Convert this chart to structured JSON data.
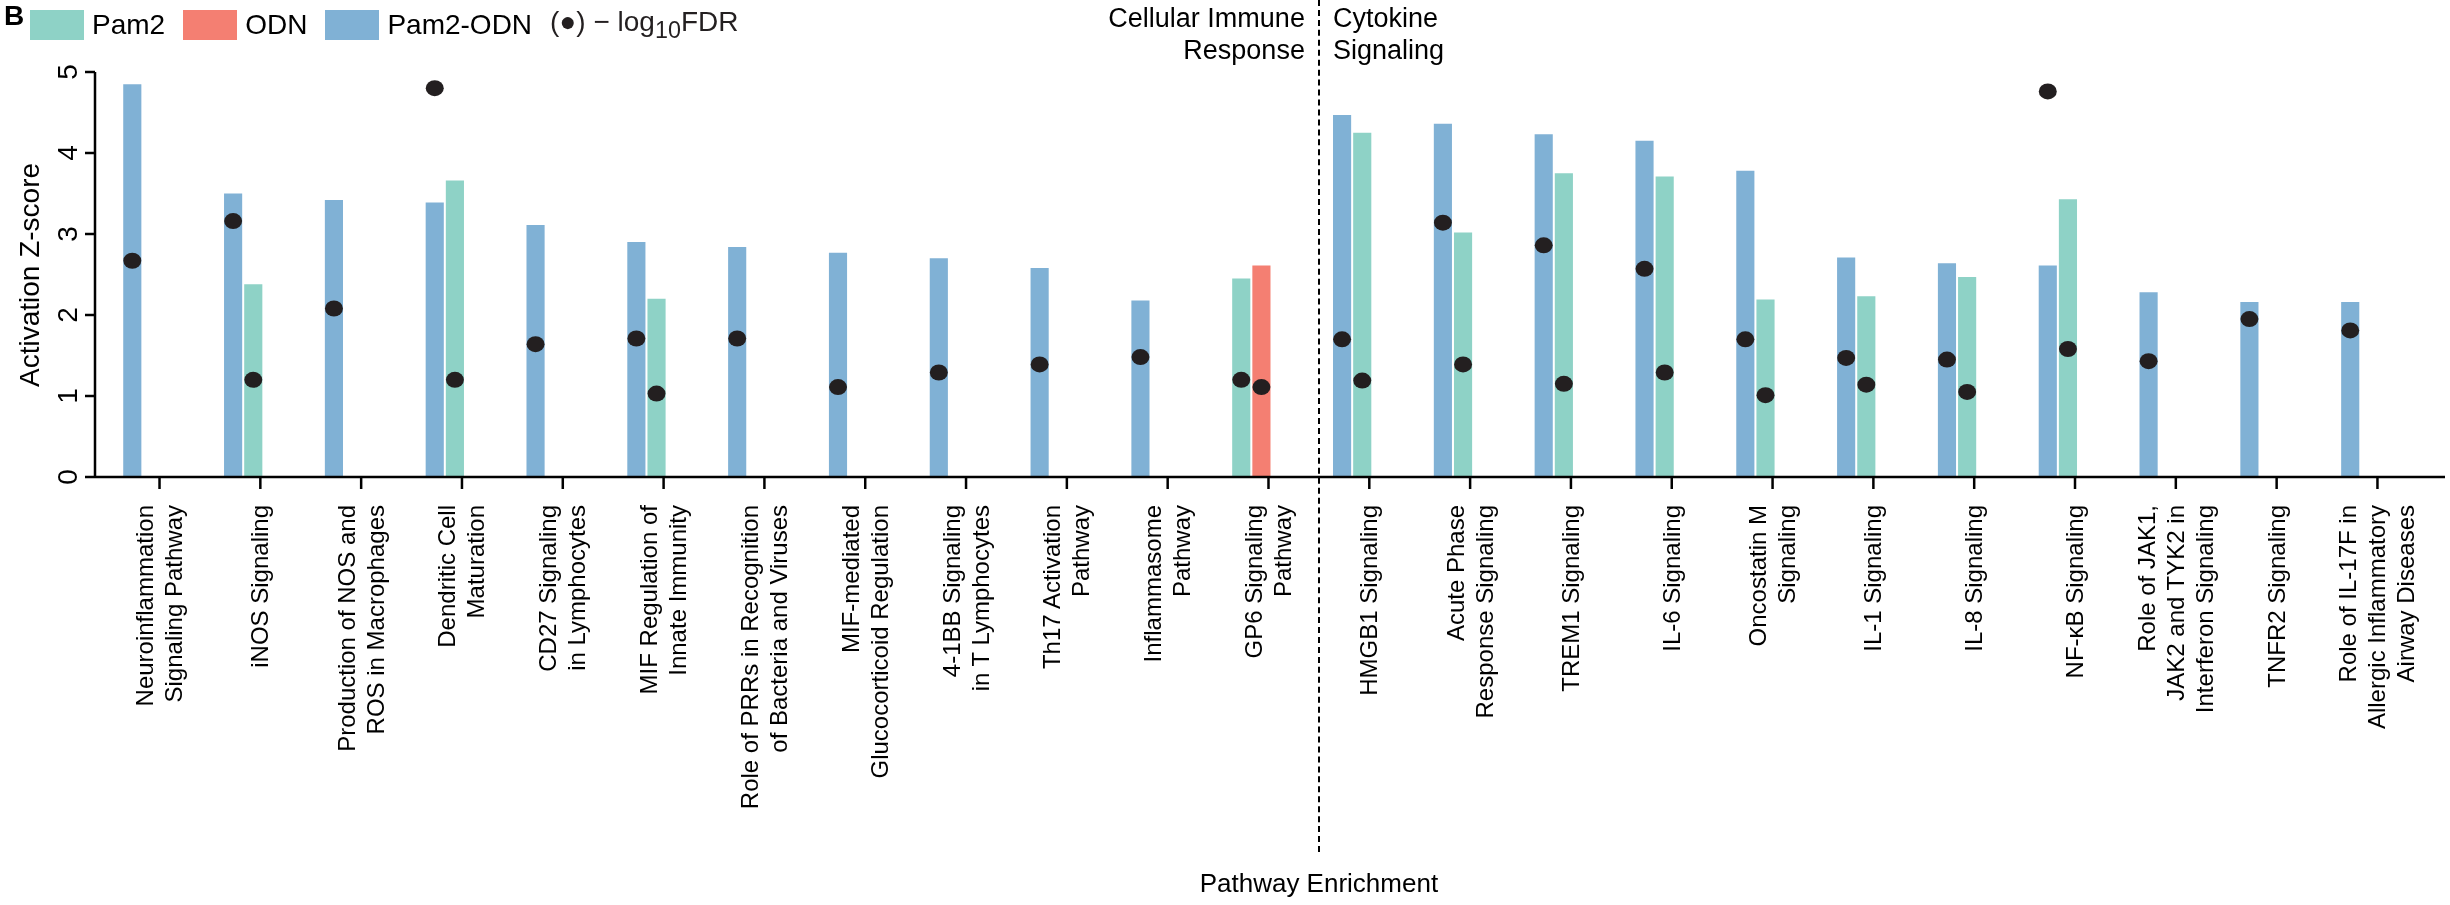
{
  "chart_data": {
    "type": "bar",
    "categories": [
      "Neuroinflammation\nSignaling Pathway",
      "iNOS Signaling",
      "Production of NOS and\nROS in Macrophages",
      "Dendritic Cell\nMaturation",
      "CD27 Signaling\nin Lymphocytes",
      "MIF Regulation of\nInnate Immunity",
      "Role of PRRs in Recognition\nof Bacteria and Viruses",
      "MIF-mediated\nGlucocorticoid Regulation",
      "4-1BB Signaling\nin T Lymphocytes",
      "Th17 Activation\nPathway",
      "Inflammasome\nPathway",
      "GP6 Signaling\nPathway",
      "HMGB1 Signaling",
      "Acute Phase\nResponse Signaling",
      "TREM1 Signaling",
      "IL-6 Signaling",
      "Oncostatin M\nSignaling",
      "IL-1 Signaling",
      "IL-8 Signaling",
      "NF-κB Signaling",
      "Role of JAK1,\nJAK2 and TYK2 in\nInterferon Signaling",
      "TNFR2 Signaling",
      "Role of IL-17F in\nAllergic Inflammatory\nAirway Diseases"
    ],
    "series": [
      {
        "name": "Pam2",
        "color": "#8ed2c6",
        "values": [
          null,
          2.38,
          null,
          3.66,
          null,
          2.2,
          null,
          null,
          null,
          null,
          null,
          2.45,
          4.25,
          3.02,
          3.75,
          3.71,
          2.19,
          2.23,
          2.47,
          3.43,
          null,
          null,
          null
        ]
      },
      {
        "name": "ODN",
        "color": "#f47f72",
        "values": [
          null,
          null,
          null,
          null,
          null,
          null,
          null,
          null,
          null,
          null,
          null,
          2.61,
          null,
          null,
          null,
          null,
          null,
          null,
          null,
          null,
          null,
          null,
          null
        ]
      },
      {
        "name": "Pam2-ODN",
        "color": "#80b1d5",
        "values": [
          4.85,
          3.5,
          3.42,
          3.39,
          3.11,
          2.9,
          2.84,
          2.77,
          2.7,
          2.58,
          2.18,
          null,
          4.47,
          4.36,
          4.23,
          4.15,
          3.78,
          2.71,
          2.64,
          2.61,
          2.28,
          2.16,
          2.16
        ]
      },
      {
        "name": "(●) − log$_{10}$FDR",
        "type": "scatter",
        "color": "#231f20",
        "x": [
          "Neuroinflammation\nSignaling Pathway",
          "iNOS Signaling",
          "iNOS Signaling",
          "Production of NOS and\nROS in Macrophages",
          "Dendritic Cell\nMaturation",
          "Dendritic Cell\nMaturation",
          "CD27 Signaling\nin Lymphocytes",
          "MIF Regulation of\nInnate Immunity",
          "MIF Regulation of\nInnate Immunity",
          "Role of PRRs in Recognition\nof Bacteria and Viruses",
          "MIF-mediated\nGlucocorticoid Regulation",
          "4-1BB Signaling\nin T Lymphocytes",
          "Th17 Activation\nPathway",
          "Inflammasome\nPathway",
          "GP6 Signaling\nPathway",
          "GP6 Signaling\nPathway",
          "HMGB1 Signaling",
          "HMGB1 Signaling",
          "Acute Phase\nResponse Signaling",
          "Acute Phase\nResponse Signaling",
          "TREM1 Signaling",
          "TREM1 Signaling",
          "IL-6 Signaling",
          "IL-6 Signaling",
          "Oncostatin M\nSignaling",
          "Oncostatin M\nSignaling",
          "IL-1 Signaling",
          "IL-1 Signaling",
          "IL-8 Signaling",
          "IL-8 Signaling",
          "NF-κB Signaling",
          "NF-κB Signaling",
          "Role of JAK1,\nJAK2 and TYK2 in\nInterferon Signaling",
          "TNFR2 Signaling",
          "Role of IL-17F in\nAllergic Inflammatory\nAirway Diseases"
        ],
        "values": [
          2.67,
          3.16,
          1.2,
          2.08,
          4.8,
          1.2,
          1.64,
          1.71,
          1.03,
          1.71,
          1.11,
          1.29,
          1.39,
          1.48,
          1.2,
          1.11,
          1.7,
          1.19,
          3.14,
          1.39,
          2.86,
          1.15,
          2.57,
          1.29,
          1.7,
          1.01,
          1.47,
          1.14,
          1.45,
          1.05,
          4.76,
          1.58,
          1.43,
          1.95,
          1.81
        ]
      }
    ],
    "ylabel": "Activation Z-score",
    "xlabel": "Pathway Enrichment",
    "ylim": [
      0,
      5
    ],
    "yticks": [
      0,
      1,
      2,
      3,
      4,
      5
    ],
    "marker": "circle",
    "legend": "top left",
    "annotations": [
      "B",
      "Cellular Immune\nResponse",
      "Cytokine\nSignaling"
    ]
  }
}
